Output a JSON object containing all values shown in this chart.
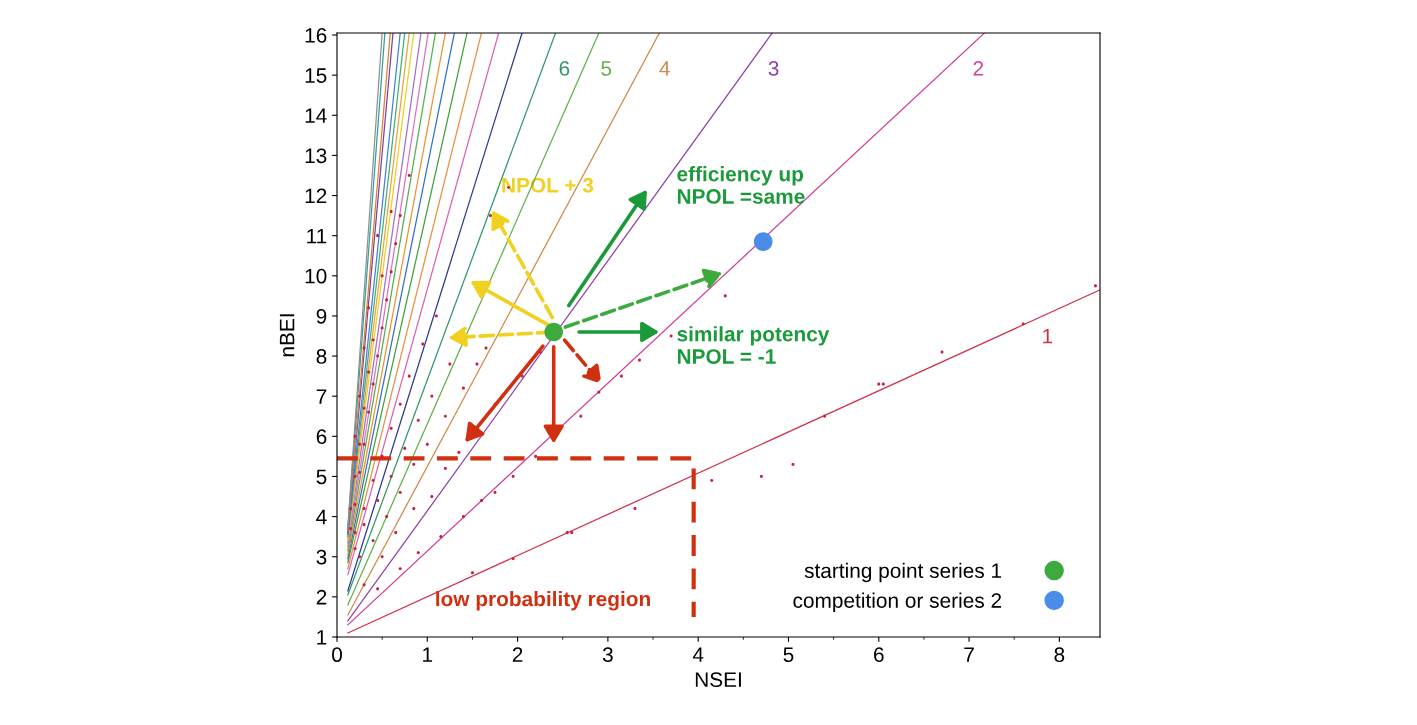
{
  "chart_data": {
    "type": "line",
    "xlabel": "NSEI",
    "ylabel": "nBEI",
    "xlim": [
      0,
      8.45
    ],
    "ylim": [
      1,
      16.05
    ],
    "xticks": [
      0,
      1,
      2,
      3,
      4,
      5,
      6,
      7,
      8
    ],
    "yticks": [
      1,
      2,
      3,
      4,
      5,
      6,
      7,
      8,
      9,
      10,
      11,
      12,
      13,
      14,
      15,
      16
    ],
    "grid": false,
    "legend": "bottom right",
    "marker": "none",
    "line_style": "solid",
    "annotations": [
      "efficiency up\nNPOL =same",
      "similar potency\nNPOL = -1",
      "NPOL + 3",
      "low probability region"
    ],
    "series": [
      {
        "name": "1",
        "color": "#d0304a",
        "x": [
          0.12,
          8.45
        ],
        "values": [
          1.1,
          9.65
        ]
      },
      {
        "name": "2",
        "color": "#d0409a",
        "x": [
          0.12,
          7.17
        ],
        "values": [
          1.3,
          16.05
        ]
      },
      {
        "name": "3",
        "color": "#9040a8",
        "x": [
          0.12,
          4.82
        ],
        "values": [
          1.4,
          16.05
        ]
      },
      {
        "name": "4",
        "color": "#d08848",
        "x": [
          0.12,
          3.57
        ],
        "values": [
          1.55,
          16.05
        ]
      },
      {
        "name": "5",
        "color": "#60b048",
        "x": [
          0.12,
          2.9
        ],
        "values": [
          1.8,
          16.05
        ]
      },
      {
        "name": "6",
        "color": "#309868",
        "x": [
          0.12,
          2.42
        ],
        "values": [
          2.05,
          16.05
        ]
      },
      {
        "color": "#283890",
        "x": [
          0.12,
          2.05
        ],
        "values": [
          2.15,
          16.05
        ]
      },
      {
        "color": "#e060b0",
        "x": [
          0.12,
          1.79
        ],
        "values": [
          2.55,
          16.05
        ]
      },
      {
        "color": "#e89040",
        "x": [
          0.12,
          1.6
        ],
        "values": [
          2.7,
          16.05
        ]
      },
      {
        "color": "#40a040",
        "x": [
          0.12,
          1.44
        ],
        "values": [
          2.85,
          16.05
        ]
      },
      {
        "color": "#3070d0",
        "x": [
          0.12,
          1.3
        ],
        "values": [
          2.95,
          16.05
        ]
      },
      {
        "color": "#f09030",
        "x": [
          0.12,
          1.2
        ],
        "values": [
          3.05,
          16.05
        ]
      },
      {
        "color": "#50b050",
        "x": [
          0.12,
          1.09
        ],
        "values": [
          3.15,
          16.05
        ]
      },
      {
        "color": "#e070c0",
        "x": [
          0.12,
          1.01
        ],
        "values": [
          3.25,
          16.05
        ]
      },
      {
        "color": "#a070d0",
        "x": [
          0.12,
          0.93
        ],
        "values": [
          3.35,
          16.05
        ]
      },
      {
        "color": "#f0d020",
        "x": [
          0.12,
          0.85
        ],
        "values": [
          3.4,
          16.05
        ]
      },
      {
        "color": "#f0a040",
        "x": [
          0.12,
          0.8
        ],
        "values": [
          3.45,
          16.05
        ]
      },
      {
        "color": "#40b070",
        "x": [
          0.12,
          0.75
        ],
        "values": [
          3.5,
          16.05
        ]
      },
      {
        "color": "#4080e0",
        "x": [
          0.12,
          0.7
        ],
        "values": [
          3.55,
          16.05
        ]
      },
      {
        "color": "#8040a0",
        "x": [
          0.12,
          0.62
        ],
        "values": [
          3.6,
          16.05
        ]
      },
      {
        "color": "#e08030",
        "x": [
          0.12,
          0.59
        ],
        "values": [
          3.65,
          16.05
        ]
      },
      {
        "color": "#30a0a0",
        "x": [
          0.12,
          0.53
        ],
        "values": [
          3.7,
          16.05
        ]
      },
      {
        "color": "#909090",
        "x": [
          0.12,
          0.5
        ],
        "values": [
          3.75,
          16.05
        ]
      },
      {
        "type": "scatter",
        "color": "#c8203c",
        "marker": "circle",
        "x": [
          1.5,
          1.95,
          2.55,
          2.6,
          3.3,
          4.15,
          4.7,
          5.05,
          5.4,
          6.0,
          6.05,
          6.7,
          7.6,
          8.4,
          0.45,
          0.7,
          0.9,
          1.15,
          1.4,
          1.6,
          1.75,
          1.95,
          2.2,
          2.7,
          2.9,
          3.15,
          3.35,
          3.7,
          4.3,
          0.3,
          0.5,
          0.65,
          0.85,
          1.05,
          1.2,
          1.35,
          1.75,
          2.05,
          2.25,
          0.25,
          0.4,
          0.55,
          0.7,
          0.85,
          1.0,
          1.2,
          1.4,
          1.55,
          1.65,
          0.2,
          0.3,
          0.45,
          0.6,
          0.75,
          0.9,
          1.05,
          1.25,
          0.2,
          0.3,
          0.4,
          0.5,
          0.6,
          0.7,
          0.8,
          0.95,
          1.1,
          0.15,
          0.2,
          0.25,
          0.3,
          0.35,
          0.4,
          0.45,
          0.5,
          0.55,
          0.6,
          0.65,
          0.7,
          0.15,
          0.2,
          0.25,
          0.3,
          0.35,
          0.4,
          0.5,
          0.6,
          0.2,
          0.25,
          0.3,
          0.35,
          0.45,
          1.7,
          1.9,
          0.8
        ],
        "values": [
          2.6,
          2.95,
          3.6,
          3.6,
          4.2,
          4.9,
          5.0,
          5.3,
          6.5,
          7.3,
          7.3,
          8.1,
          8.8,
          9.75,
          2.2,
          2.7,
          3.1,
          3.5,
          4.0,
          4.4,
          4.6,
          5.0,
          5.5,
          6.5,
          7.1,
          7.5,
          7.9,
          8.5,
          9.5,
          2.3,
          3.0,
          3.6,
          4.2,
          4.5,
          5.2,
          5.6,
          6.8,
          7.5,
          8.1,
          3.0,
          3.4,
          4.0,
          4.6,
          5.3,
          5.8,
          6.5,
          7.2,
          7.8,
          8.2,
          3.2,
          3.8,
          4.4,
          5.0,
          5.7,
          6.4,
          7.0,
          7.8,
          3.6,
          4.2,
          4.9,
          5.5,
          6.2,
          6.8,
          7.5,
          8.3,
          9.0,
          3.7,
          4.3,
          5.1,
          5.8,
          6.6,
          7.3,
          8.0,
          8.7,
          9.4,
          10.1,
          10.8,
          11.5,
          4.2,
          5.0,
          5.8,
          6.7,
          7.6,
          8.4,
          10.0,
          11.6,
          6.0,
          7.0,
          8.2,
          9.2,
          11.0,
          11.5,
          12.2,
          12.5
        ]
      },
      {
        "type": "line",
        "color": "#d03010",
        "line_style": "dashed",
        "x": [
          0,
          3.95,
          3.95
        ],
        "values": [
          5.45,
          5.45,
          1.5
        ]
      },
      {
        "type": "scatter",
        "name": "starting point series 1",
        "color": "#3caa3c",
        "marker": "circle",
        "x": [
          2.4
        ],
        "values": [
          8.6
        ]
      },
      {
        "type": "scatter",
        "name": "competition or series 2",
        "color": "#4a8ce8",
        "marker": "circle",
        "x": [
          4.72
        ],
        "values": [
          10.85
        ]
      }
    ]
  }
}
